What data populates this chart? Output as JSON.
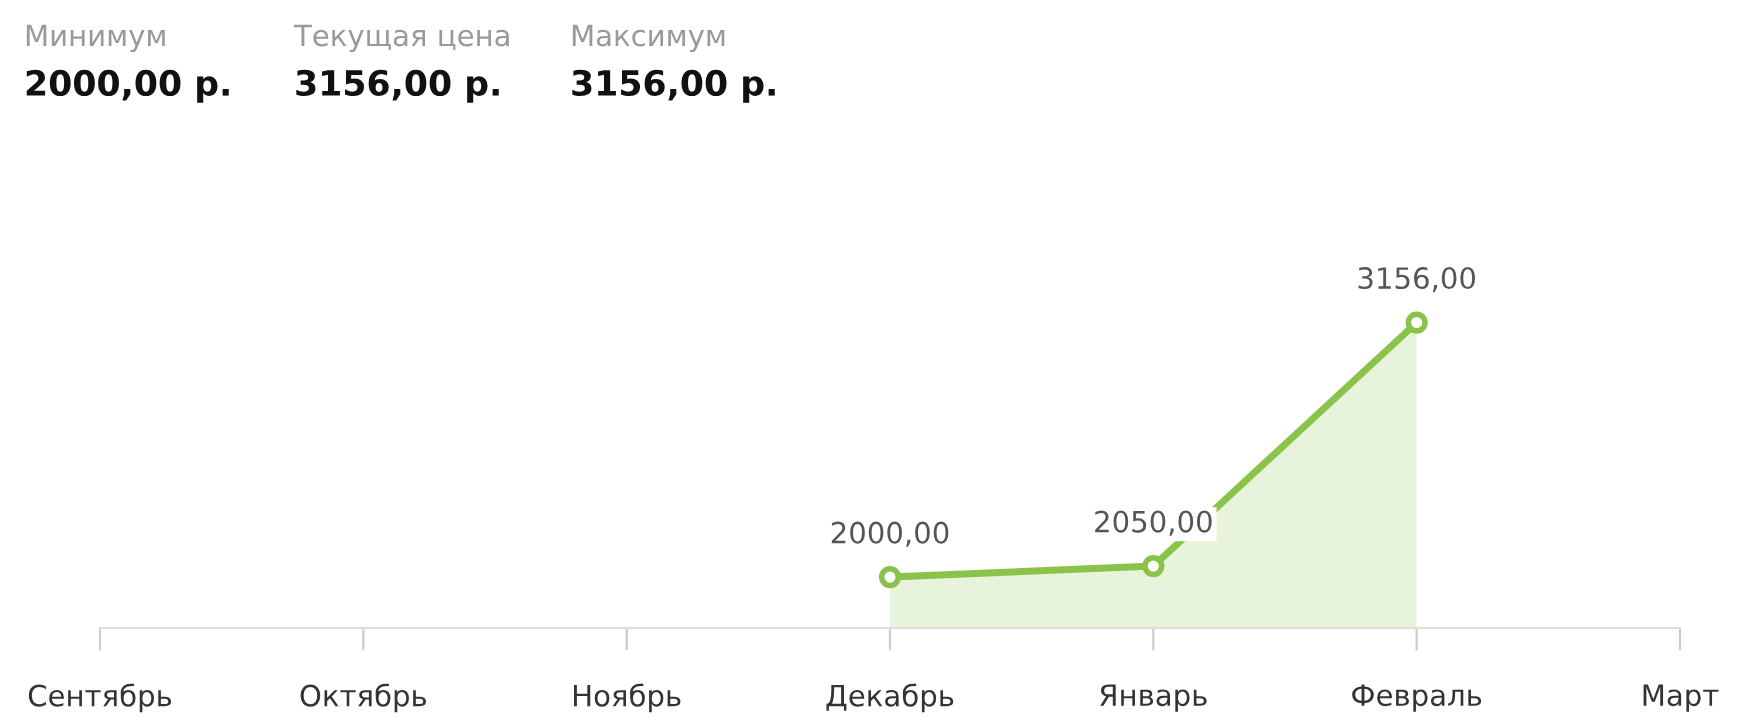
{
  "chart_data": {
    "type": "area",
    "categories": [
      "Сентябрь",
      "Октябрь",
      "Ноябрь",
      "Декабрь",
      "Январь",
      "Февраль",
      "Март"
    ],
    "series": [
      {
        "color": "#8bc34a",
        "values": [
          null,
          null,
          null,
          2000,
          2050,
          3156,
          null
        ],
        "value_labels": [
          null,
          null,
          null,
          "2000,00",
          "2050,00",
          "3156,00",
          null
        ]
      }
    ],
    "tick_labels": "x",
    "marker": "circle",
    "annotations": [
      "Минимум",
      "2000,00 р.",
      "Текущая цена",
      "3156,00 р.",
      "Максимум",
      "3156,00 р."
    ]
  }
}
